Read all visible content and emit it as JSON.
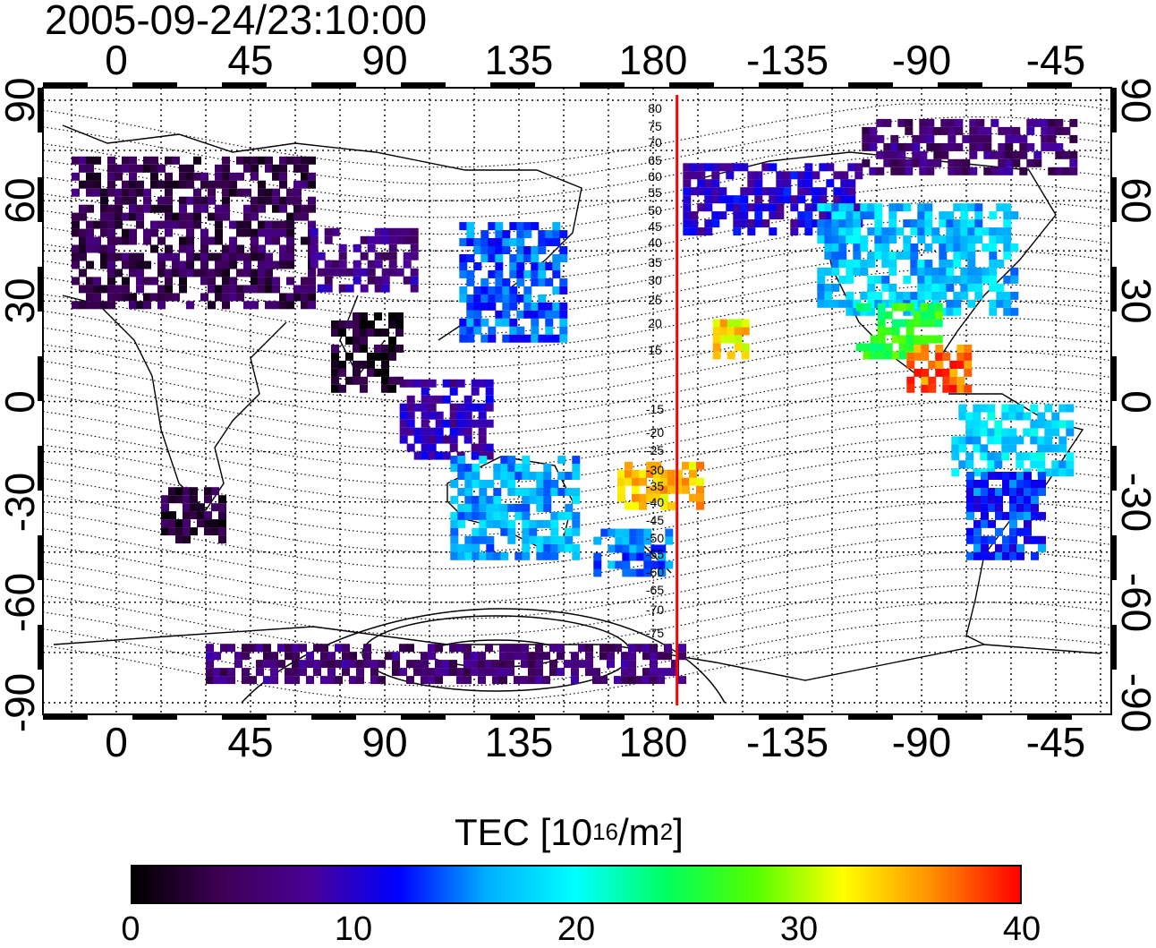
{
  "title": "2005-09-24/23:10:00",
  "axes": {
    "lon_ticks": [
      "0",
      "45",
      "90",
      "135",
      "180",
      "-135",
      "-90",
      "-45"
    ],
    "lat_ticks": [
      "90",
      "60",
      "30",
      "0",
      "-30",
      "-60",
      "-90"
    ]
  },
  "contour_labels": [
    "80",
    "75",
    "70",
    "65",
    "60",
    "55",
    "50",
    "45",
    "40",
    "35",
    "30",
    "25",
    "20",
    "15",
    "-15",
    "-20",
    "-25",
    "-30",
    "-35",
    "-40",
    "-45",
    "-50",
    "-55",
    "-60",
    "-65",
    "-70",
    "-75"
  ],
  "marker_line": {
    "longitude": -172,
    "color": "#ff0000"
  },
  "colorbar": {
    "label_main": "TEC  [10",
    "label_exp": "16",
    "label_unit": "/m",
    "label_exp2": "2",
    "label_end": "]",
    "min": 0,
    "max": 40,
    "ticks": [
      "0",
      "10",
      "20",
      "30",
      "40"
    ],
    "stops": [
      "#000000",
      "#3d0055",
      "#4b0096",
      "#0000ff",
      "#00b0ff",
      "#00ffff",
      "#00ff60",
      "#50ff00",
      "#ffff00",
      "#ff9000",
      "#ff0000"
    ]
  },
  "tec_patches": [
    {
      "name": "europe",
      "lon": [
        -15,
        65
      ],
      "lat": [
        30,
        75
      ],
      "tec": 4
    },
    {
      "name": "central-asia",
      "lon": [
        65,
        100
      ],
      "lat": [
        35,
        52
      ],
      "tec": 7
    },
    {
      "name": "east-asia",
      "lon": [
        115,
        150
      ],
      "lat": [
        20,
        55
      ],
      "tec": 14
    },
    {
      "name": "india",
      "lon": [
        72,
        95
      ],
      "lat": [
        5,
        28
      ],
      "tec": 2
    },
    {
      "name": "southeast-asia",
      "lon": [
        95,
        125
      ],
      "lat": [
        -15,
        8
      ],
      "tec": 9
    },
    {
      "name": "australia-south",
      "lon": [
        112,
        155
      ],
      "lat": [
        -45,
        -15
      ],
      "tec": 16
    },
    {
      "name": "new-zealand",
      "lon": [
        160,
        185
      ],
      "lat": [
        -50,
        -36
      ],
      "tec": 15
    },
    {
      "name": "pacific-south",
      "lon": [
        168,
        195
      ],
      "lat": [
        -30,
        -18
      ],
      "tec": 34
    },
    {
      "name": "alaska",
      "lon": [
        190,
        250
      ],
      "lat": [
        52,
        72
      ],
      "tec": 10
    },
    {
      "name": "north-america",
      "lon": [
        235,
        300
      ],
      "lat": [
        28,
        60
      ],
      "tec": 17
    },
    {
      "name": "mexico",
      "lon": [
        248,
        275
      ],
      "lat": [
        15,
        30
      ],
      "tec": 26
    },
    {
      "name": "central-america",
      "lon": [
        265,
        285
      ],
      "lat": [
        5,
        18
      ],
      "tec": 37
    },
    {
      "name": "south-america-north",
      "lon": [
        280,
        320
      ],
      "lat": [
        -20,
        0
      ],
      "tec": 18
    },
    {
      "name": "south-america-south",
      "lon": [
        285,
        310
      ],
      "lat": [
        -45,
        -20
      ],
      "tec": 13
    },
    {
      "name": "southern-africa",
      "lon": [
        15,
        35
      ],
      "lat": [
        -40,
        -25
      ],
      "tec": 3
    },
    {
      "name": "arctic-canada",
      "lon": [
        250,
        320
      ],
      "lat": [
        70,
        85
      ],
      "tec": 6
    },
    {
      "name": "antarctic",
      "lon": [
        30,
        190
      ],
      "lat": [
        -82,
        -70
      ],
      "tec": 6
    },
    {
      "name": "hawaii",
      "lon": [
        200,
        212
      ],
      "lat": [
        15,
        25
      ],
      "tec": 33
    }
  ]
}
